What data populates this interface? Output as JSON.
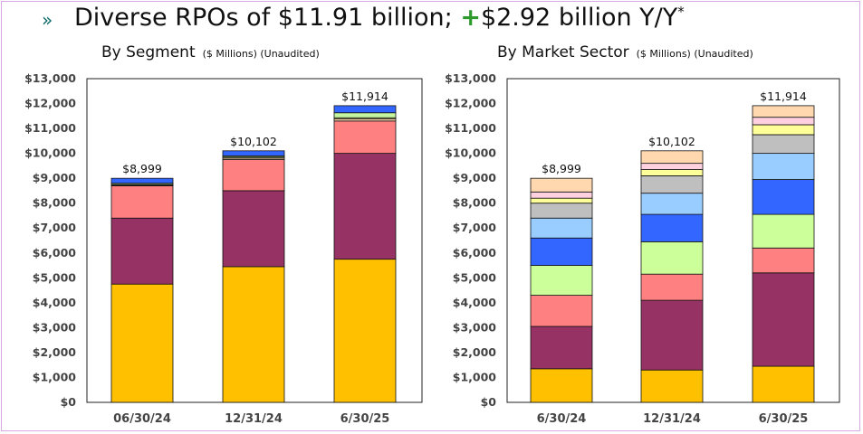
{
  "headline": {
    "bullet": "»",
    "text_a": "Diverse RPOs of $11.91 billion; ",
    "plus": "+",
    "text_b": "$2.92 billion Y/Y",
    "sup": "*"
  },
  "chart_data": [
    {
      "type": "bar",
      "stacked": true,
      "title": "By Segment",
      "subtitle": "($ Millions) (Unaudited)",
      "categories": [
        "06/30/24",
        "12/31/24",
        "6/30/25"
      ],
      "totals": [
        "$8,999",
        "$10,102",
        "$11,914"
      ],
      "ylim": [
        0,
        13000
      ],
      "ytick_step": 1000,
      "grid": false,
      "series": [
        {
          "color": "#ffc000",
          "values": [
            4750,
            5450,
            5750
          ]
        },
        {
          "color": "#963264",
          "values": [
            2650,
            3050,
            4250
          ]
        },
        {
          "color": "#ff8080",
          "values": [
            1300,
            1250,
            1300
          ]
        },
        {
          "color": "#ffd8b0",
          "values": [
            30,
            60,
            80
          ]
        },
        {
          "color": "#ffff99",
          "values": [
            20,
            40,
            50
          ]
        },
        {
          "color": "#c6f5a0",
          "values": [
            50,
            50,
            200
          ]
        },
        {
          "color": "#3366ff",
          "values": [
            199,
            202,
            284
          ]
        }
      ]
    },
    {
      "type": "bar",
      "stacked": true,
      "title": "By Market Sector",
      "subtitle": "($ Millions) (Unaudited)",
      "categories": [
        "6/30/24",
        "12/31/24",
        "6/30/25"
      ],
      "totals": [
        "$8,999",
        "$10,102",
        "$11,914"
      ],
      "ylim": [
        0,
        13000
      ],
      "ytick_step": 1000,
      "grid": false,
      "series": [
        {
          "color": "#ffc000",
          "values": [
            1350,
            1300,
            1450
          ]
        },
        {
          "color": "#963264",
          "values": [
            1700,
            2800,
            3750
          ]
        },
        {
          "color": "#ff8080",
          "values": [
            1250,
            1050,
            1000
          ]
        },
        {
          "color": "#ccff99",
          "values": [
            1200,
            1300,
            1350
          ]
        },
        {
          "color": "#3366ff",
          "values": [
            1100,
            1100,
            1400
          ]
        },
        {
          "color": "#99ccff",
          "values": [
            800,
            850,
            1050
          ]
        },
        {
          "color": "#bfbfbf",
          "values": [
            600,
            700,
            750
          ]
        },
        {
          "color": "#ffff99",
          "values": [
            200,
            250,
            400
          ]
        },
        {
          "color": "#ffd0e0",
          "values": [
            250,
            250,
            300
          ]
        },
        {
          "color": "#ffd8b0",
          "values": [
            549,
            502,
            464
          ]
        }
      ]
    }
  ]
}
